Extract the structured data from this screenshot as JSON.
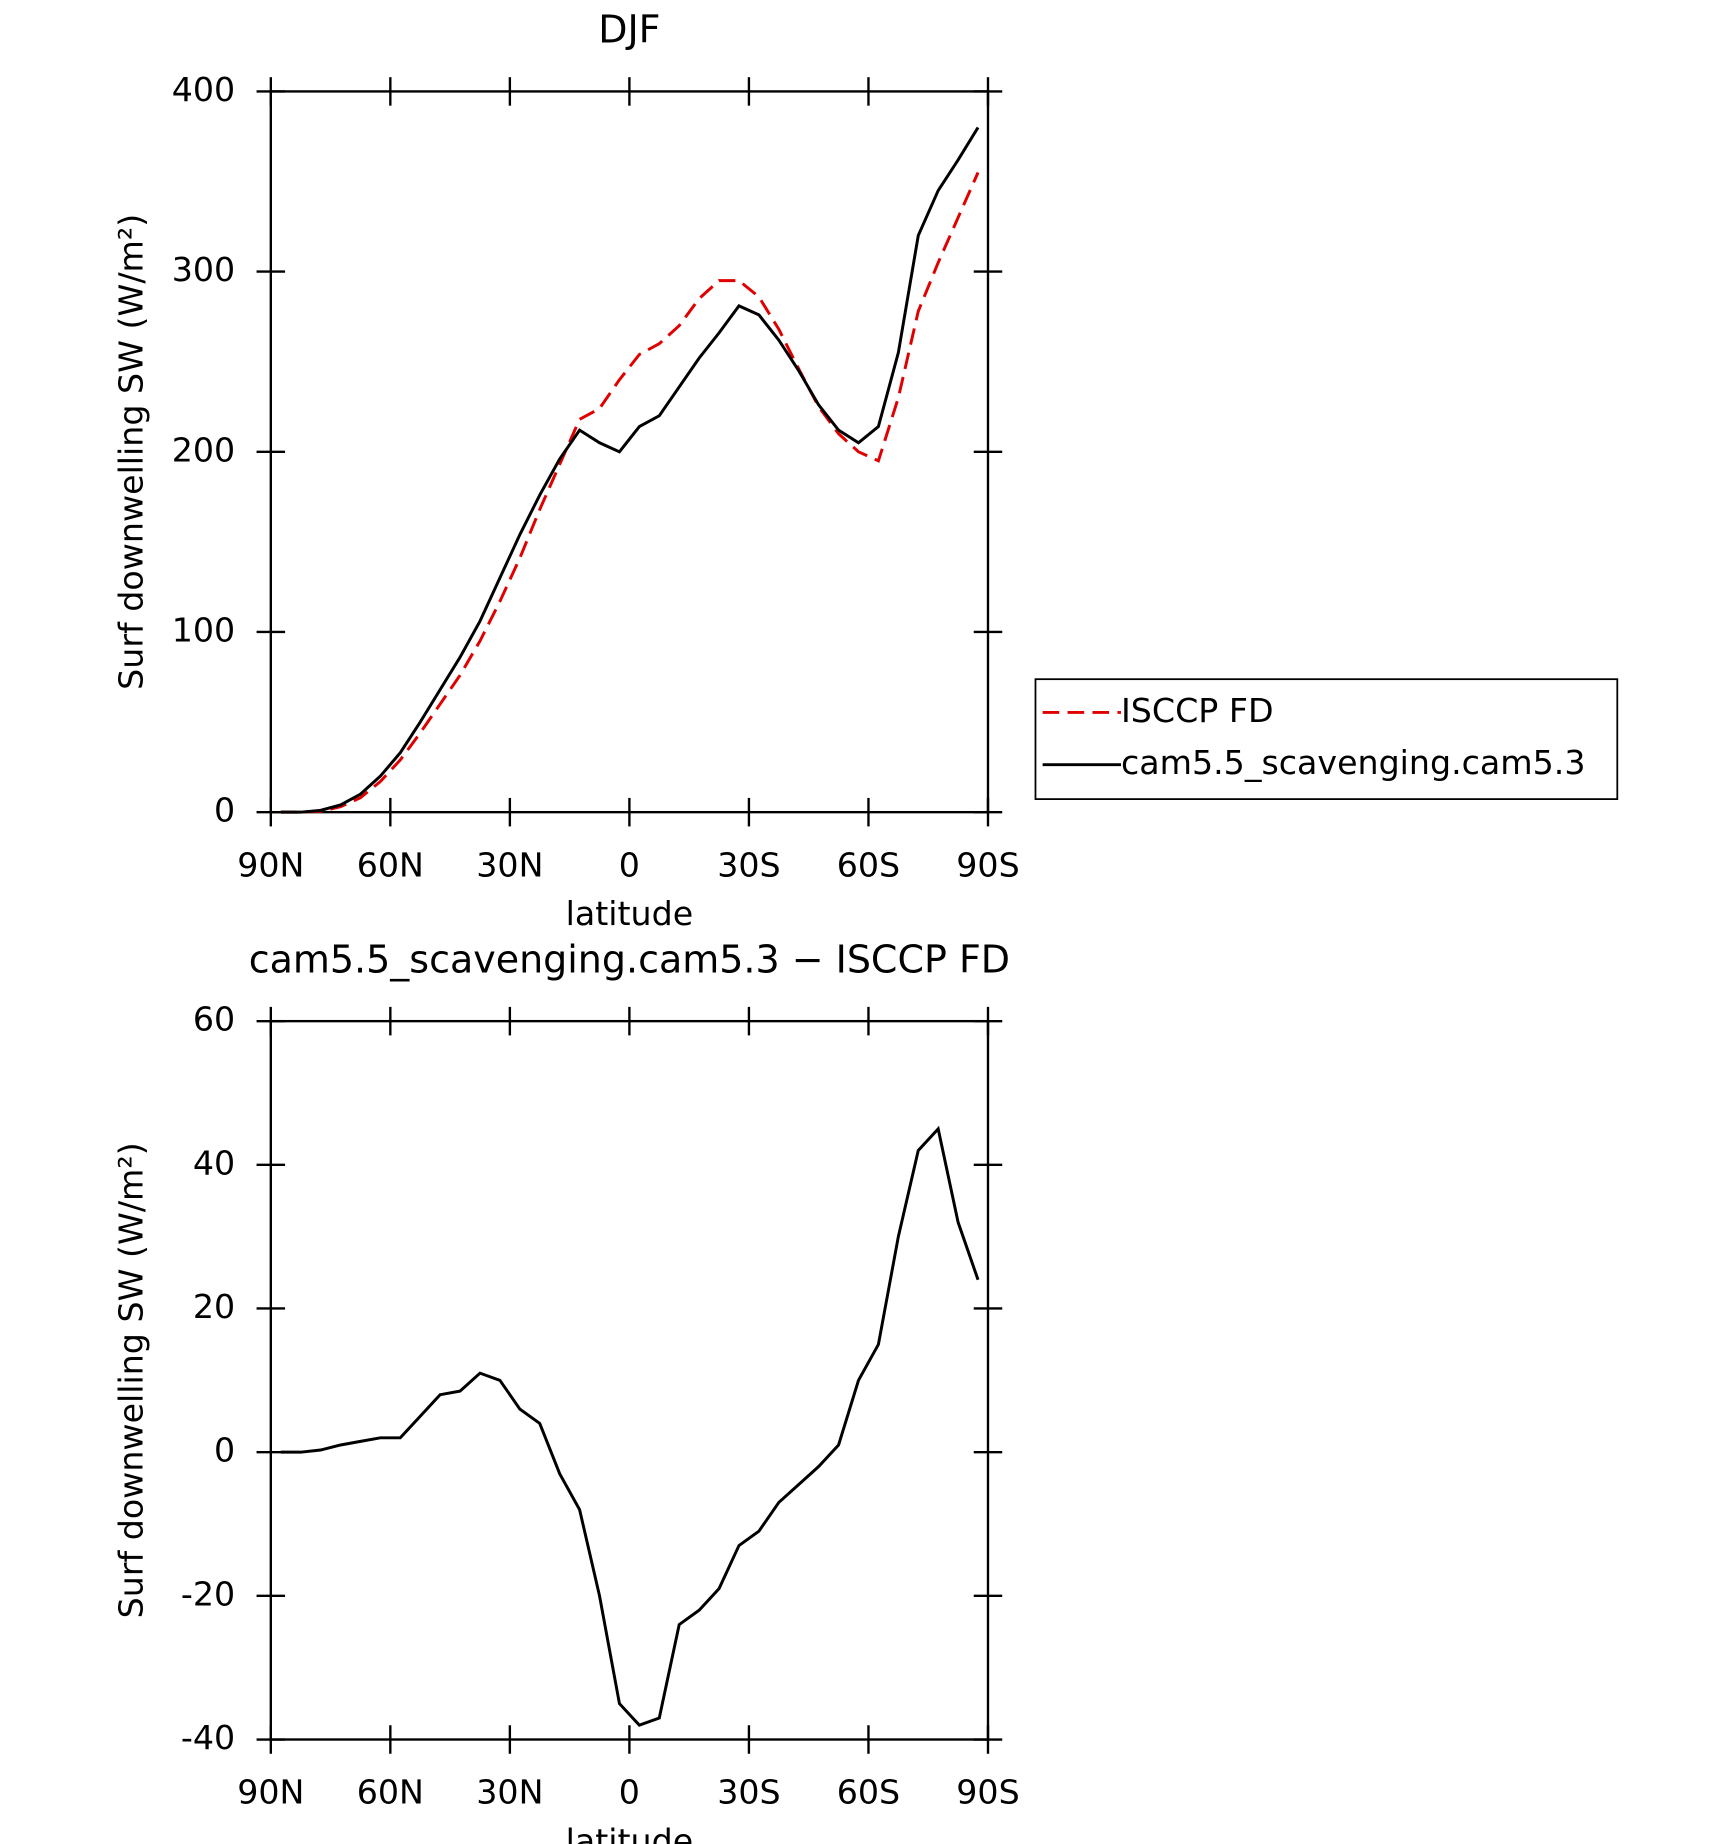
{
  "chart_data": [
    {
      "type": "line",
      "title": "DJF",
      "xlabel": "latitude",
      "ylabel": "Surf downwelling SW (W/m²)",
      "x": [
        87.5,
        82.5,
        77.5,
        72.5,
        67.5,
        62.5,
        57.5,
        52.5,
        47.5,
        42.5,
        37.5,
        32.5,
        27.5,
        22.5,
        17.5,
        12.5,
        7.5,
        2.5,
        -2.5,
        -7.5,
        -12.5,
        -17.5,
        -22.5,
        -27.5,
        -32.5,
        -37.5,
        -42.5,
        -47.5,
        -52.5,
        -57.5,
        -62.5,
        -67.5,
        -72.5,
        -77.5,
        -82.5,
        -87.5
      ],
      "series": [
        {
          "name": "ISCCP FD",
          "color": "#e00000",
          "style": "dashed",
          "values": [
            0,
            0,
            0.5,
            3,
            8,
            17,
            29,
            44,
            60,
            76,
            95,
            117,
            141,
            168,
            193,
            218,
            224,
            240,
            254,
            260,
            270,
            285,
            295,
            295,
            286,
            268,
            246,
            225,
            210,
            200,
            195,
            230,
            278,
            305,
            330,
            355
          ]
        },
        {
          "name": "cam5.5_scavenging.cam5.3",
          "color": "#000000",
          "style": "solid",
          "values": [
            0,
            0,
            1,
            4,
            10,
            20,
            33,
            50,
            68,
            86,
            106,
            130,
            154,
            176,
            196,
            212,
            205,
            200,
            214,
            220,
            236,
            252,
            266,
            281,
            276,
            262,
            245,
            226,
            212,
            205,
            214,
            255,
            320,
            345,
            362,
            380
          ]
        }
      ],
      "xlim": [
        90,
        -90
      ],
      "xticks": [
        {
          "value": 90,
          "label": "90N"
        },
        {
          "value": 60,
          "label": "60N"
        },
        {
          "value": 30,
          "label": "30N"
        },
        0,
        {
          "value": -30,
          "label": "30S"
        },
        {
          "value": -60,
          "label": "60S"
        },
        {
          "value": -90,
          "label": "90S"
        }
      ],
      "ylim": [
        0,
        400
      ],
      "yticks": [
        0,
        100,
        200,
        300,
        400
      ],
      "legend": "right"
    },
    {
      "type": "line",
      "title": "cam5.5_scavenging.cam5.3 − ISCCP FD",
      "xlabel": "latitude",
      "ylabel": "Surf downwelling SW (W/m²)",
      "x": [
        87.5,
        82.5,
        77.5,
        72.5,
        67.5,
        62.5,
        57.5,
        52.5,
        47.5,
        42.5,
        37.5,
        32.5,
        27.5,
        22.5,
        17.5,
        12.5,
        7.5,
        2.5,
        -2.5,
        -7.5,
        -12.5,
        -17.5,
        -22.5,
        -27.5,
        -32.5,
        -37.5,
        -42.5,
        -47.5,
        -52.5,
        -57.5,
        -62.5,
        -67.5,
        -72.5,
        -77.5,
        -82.5,
        -87.5
      ],
      "series": [
        {
          "color": "#000000",
          "style": "solid",
          "values": [
            0,
            0,
            0.3,
            1,
            1.5,
            2,
            2,
            5,
            8,
            8.5,
            11,
            10,
            6,
            4,
            -3,
            -8,
            -20,
            -35,
            -38,
            -37,
            -24,
            -22,
            -19,
            -13,
            -11,
            -7,
            -4.5,
            -2,
            1,
            10,
            15,
            30,
            42,
            45,
            32,
            24
          ]
        }
      ],
      "xlim": [
        90,
        -90
      ],
      "xticks": [
        {
          "value": 90,
          "label": "90N"
        },
        {
          "value": 60,
          "label": "60N"
        },
        {
          "value": 30,
          "label": "30N"
        },
        0,
        {
          "value": -30,
          "label": "30S"
        },
        {
          "value": -60,
          "label": "60S"
        },
        {
          "value": -90,
          "label": "90S"
        }
      ],
      "ylim": [
        -40,
        60
      ],
      "yticks": [
        -40,
        -20,
        0,
        20,
        40,
        60
      ]
    }
  ]
}
